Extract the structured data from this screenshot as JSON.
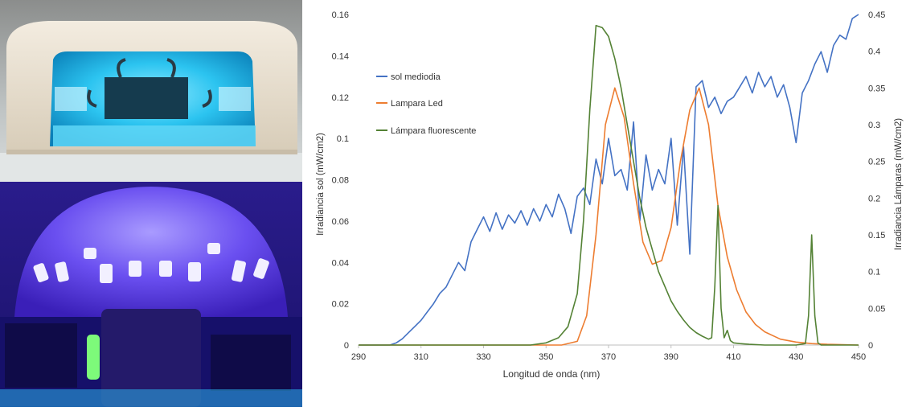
{
  "photos": [
    {
      "name": "uv-nail-lamp-led-photo",
      "glow_color": "#27c3ee"
    },
    {
      "name": "uv-dome-lamp-fluorescent-photo",
      "glow_color": "#4a2fd8"
    }
  ],
  "chart_data": {
    "type": "line",
    "title": "",
    "xlabel": "Longitud de onda (nm)",
    "ylabel": "Irradiancia sol (mW/cm2)",
    "y2label": "Irradiancia Lámparas (mW/cm2)",
    "xlim": [
      290,
      450
    ],
    "ylim": [
      0,
      0.16
    ],
    "y2lim": [
      0,
      0.45
    ],
    "xticks": [
      290,
      310,
      330,
      350,
      370,
      390,
      410,
      430,
      450
    ],
    "yticks": [
      "0",
      "0.02",
      "0.04",
      "0.06",
      "0.08",
      "0.1",
      "0.12",
      "0.14",
      "0.16"
    ],
    "y2ticks": [
      "0",
      "0.05",
      "0.1",
      "0.15",
      "0.2",
      "0.25",
      "0.3",
      "0.35",
      "0.4",
      "0.45"
    ],
    "grid": false,
    "legend_position": "top-left",
    "series": [
      {
        "name": "sol mediodia",
        "color": "#4472c4",
        "axis": "left",
        "x": [
          290,
          300,
          302,
          304,
          306,
          308,
          310,
          312,
          314,
          316,
          318,
          320,
          322,
          324,
          326,
          328,
          330,
          332,
          334,
          336,
          338,
          340,
          342,
          344,
          346,
          348,
          350,
          352,
          354,
          356,
          358,
          360,
          362,
          364,
          366,
          368,
          370,
          372,
          374,
          376,
          378,
          380,
          382,
          384,
          386,
          388,
          390,
          392,
          394,
          396,
          398,
          400,
          402,
          404,
          406,
          408,
          410,
          412,
          414,
          416,
          418,
          420,
          422,
          424,
          426,
          428,
          430,
          432,
          434,
          436,
          438,
          440,
          442,
          444,
          446,
          448,
          450
        ],
        "y": [
          0,
          0,
          0.001,
          0.003,
          0.006,
          0.009,
          0.012,
          0.016,
          0.02,
          0.025,
          0.028,
          0.034,
          0.04,
          0.036,
          0.05,
          0.056,
          0.062,
          0.055,
          0.064,
          0.056,
          0.063,
          0.059,
          0.065,
          0.058,
          0.066,
          0.06,
          0.068,
          0.062,
          0.073,
          0.066,
          0.054,
          0.072,
          0.076,
          0.068,
          0.09,
          0.078,
          0.1,
          0.082,
          0.085,
          0.075,
          0.108,
          0.06,
          0.092,
          0.075,
          0.085,
          0.078,
          0.1,
          0.058,
          0.096,
          0.044,
          0.125,
          0.128,
          0.115,
          0.12,
          0.112,
          0.118,
          0.12,
          0.125,
          0.13,
          0.122,
          0.132,
          0.125,
          0.13,
          0.12,
          0.126,
          0.115,
          0.098,
          0.122,
          0.128,
          0.136,
          0.142,
          0.132,
          0.145,
          0.15,
          0.148,
          0.158,
          0.16
        ]
      },
      {
        "name": "Lampara Led",
        "color": "#ed7d31",
        "axis": "right",
        "x": [
          290,
          355,
          360,
          363,
          366,
          369,
          372,
          375,
          378,
          381,
          384,
          387,
          390,
          393,
          396,
          399,
          402,
          405,
          408,
          411,
          414,
          417,
          420,
          425,
          430,
          435,
          440,
          450
        ],
        "y": [
          0,
          0,
          0.005,
          0.04,
          0.15,
          0.3,
          0.35,
          0.31,
          0.22,
          0.14,
          0.11,
          0.115,
          0.16,
          0.25,
          0.32,
          0.35,
          0.3,
          0.19,
          0.12,
          0.075,
          0.045,
          0.028,
          0.018,
          0.008,
          0.004,
          0.002,
          0.001,
          0
        ]
      },
      {
        "name": "Lámpara fluorescente",
        "color": "#548235",
        "axis": "right",
        "x": [
          290,
          345,
          350,
          354,
          357,
          360,
          362,
          364,
          366,
          368,
          370,
          372,
          374,
          376,
          378,
          380,
          382,
          384,
          386,
          388,
          390,
          392,
          394,
          396,
          398,
          400,
          402,
          403,
          404,
          405,
          406,
          407,
          408,
          409,
          410,
          412,
          415,
          420,
          430,
          433,
          434,
          435,
          436,
          437,
          438,
          450
        ],
        "y": [
          0,
          0,
          0.003,
          0.01,
          0.025,
          0.07,
          0.17,
          0.32,
          0.435,
          0.432,
          0.42,
          0.39,
          0.35,
          0.3,
          0.25,
          0.2,
          0.16,
          0.13,
          0.1,
          0.08,
          0.06,
          0.046,
          0.034,
          0.024,
          0.017,
          0.012,
          0.008,
          0.01,
          0.08,
          0.19,
          0.05,
          0.01,
          0.02,
          0.006,
          0.003,
          0.002,
          0.001,
          0,
          0,
          0.002,
          0.04,
          0.15,
          0.04,
          0.003,
          0,
          0
        ]
      }
    ]
  }
}
